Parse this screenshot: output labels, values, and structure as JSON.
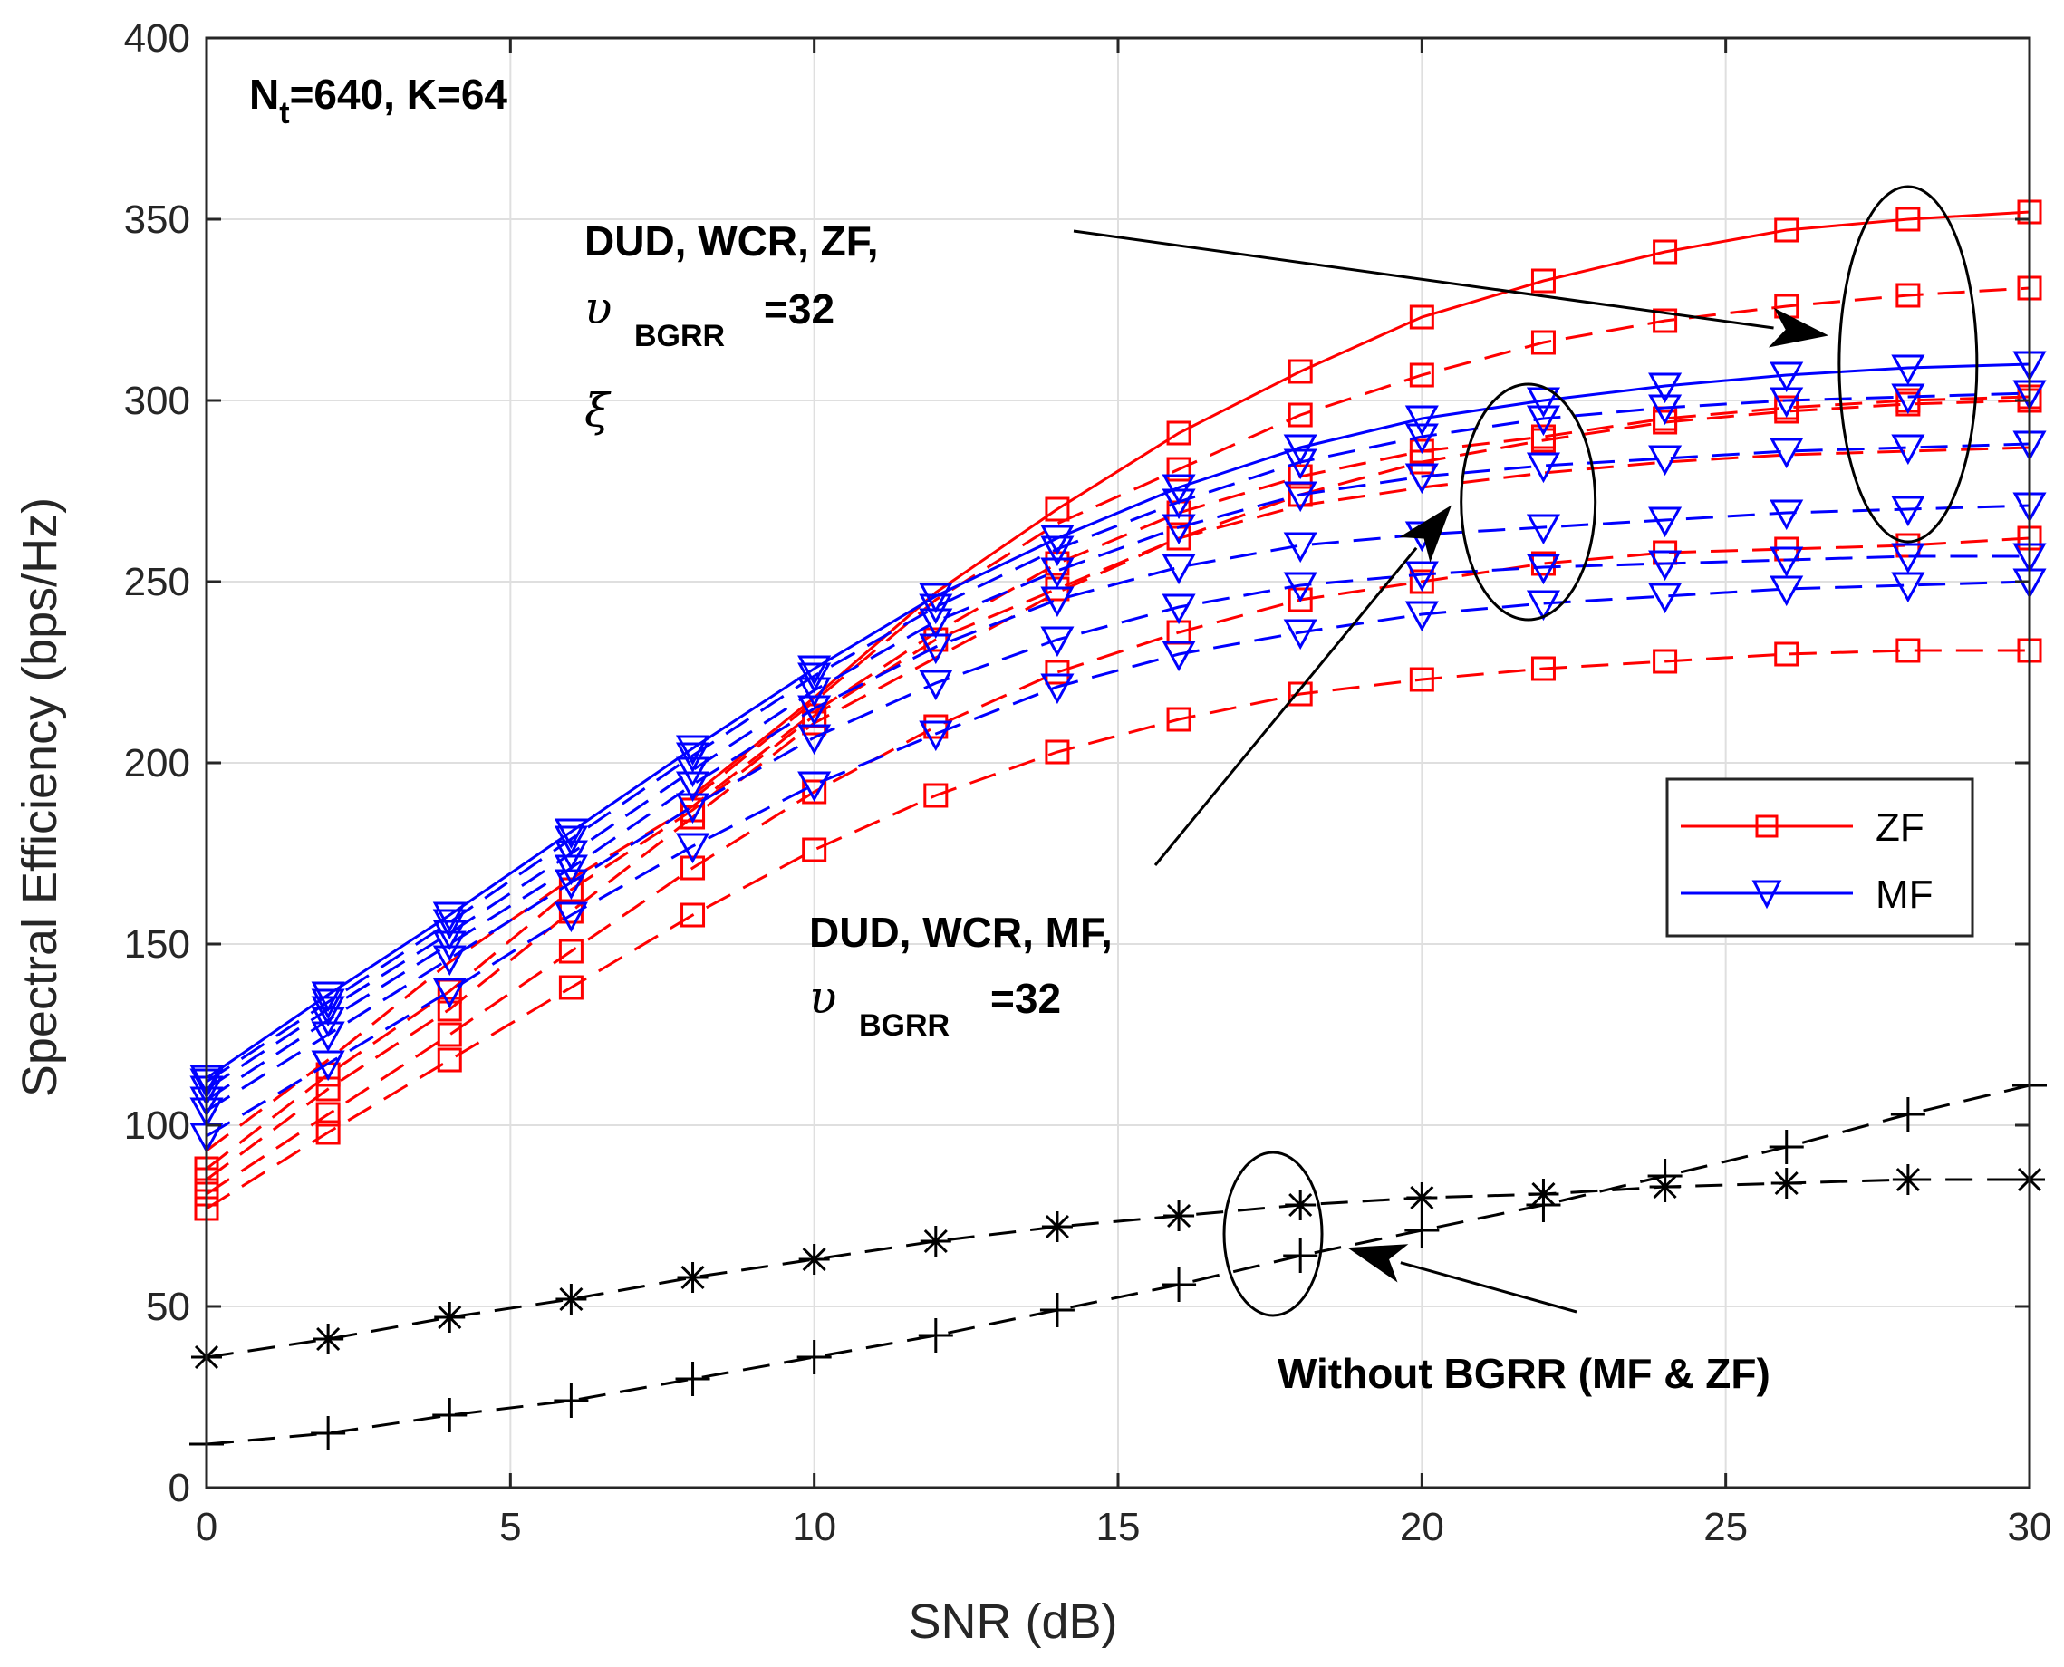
{
  "chart_data": {
    "type": "line",
    "xlabel": "SNR (dB)",
    "ylabel": "Spectral Efficiency (bps/Hz)",
    "xlim": [
      0,
      30
    ],
    "ylim": [
      0,
      400
    ],
    "xticks": [
      0,
      5,
      10,
      15,
      20,
      25,
      30
    ],
    "yticks": [
      0,
      50,
      100,
      150,
      200,
      250,
      300,
      350,
      400
    ],
    "grid": true,
    "legend": {
      "placement": "right",
      "entries": [
        {
          "label": "ZF",
          "color": "#ff0000",
          "marker": "square"
        },
        {
          "label": "MF",
          "color": "#0000ff",
          "marker": "triangle-down"
        }
      ]
    },
    "annotations": {
      "params_main": "N",
      "params_sub": "t",
      "params_rest": "=640, K=64",
      "zf_line1": "DUD, WCR, ZF,",
      "zf_sym": "υ",
      "zf_sub": "BGRR",
      "zf_val": "=32",
      "zf_xi": "ξ",
      "mf_line1": "DUD, WCR, MF,",
      "mf_sym": "υ",
      "mf_sub": "BGRR",
      "mf_val": "=32",
      "without": "Without BGRR (MF & ZF)"
    },
    "x": [
      0,
      2,
      4,
      6,
      8,
      10,
      12,
      14,
      16,
      18,
      20,
      22,
      24,
      26,
      28,
      30
    ],
    "series": [
      {
        "name": "ZF-1",
        "group": "ZF",
        "color": "#ff0000",
        "marker": "square",
        "dash": false,
        "values": [
          null,
          null,
          null,
          null,
          191,
          218,
          247,
          270,
          291,
          308,
          323,
          333,
          341,
          347,
          350,
          352
        ],
        "marker_x": [
          14,
          16,
          18,
          20,
          22,
          24,
          26,
          28,
          30
        ]
      },
      {
        "name": "ZF-2",
        "group": "ZF",
        "color": "#ff0000",
        "marker": "square",
        "dash": true,
        "values": [
          null,
          null,
          null,
          null,
          190,
          217,
          245,
          266,
          281,
          296,
          307,
          316,
          322,
          326,
          329,
          331
        ],
        "marker_x": [
          16,
          18,
          20,
          22,
          24,
          26,
          28,
          30
        ]
      },
      {
        "name": "ZF-3",
        "group": "ZF",
        "color": "#ff0000",
        "marker": "square",
        "dash": true,
        "values": [
          93,
          118,
          145,
          168,
          188,
          214,
          236,
          255,
          269,
          279,
          286,
          290,
          295,
          298,
          300,
          301
        ],
        "marker_x": [
          14,
          16,
          18,
          20,
          22,
          24,
          26,
          28,
          30
        ]
      },
      {
        "name": "ZF-4",
        "group": "ZF",
        "color": "#ff0000",
        "marker": "square",
        "dash": true,
        "values": [
          88,
          114,
          137,
          165,
          187,
          213,
          234,
          248,
          262,
          274,
          283,
          289,
          294,
          297,
          299,
          300
        ],
        "marker_x": [
          0,
          2,
          4,
          6,
          8,
          10,
          12,
          14,
          16,
          18,
          20,
          22,
          24,
          26,
          28,
          30
        ]
      },
      {
        "name": "ZF-5",
        "group": "ZF",
        "color": "#ff0000",
        "marker": "square",
        "dash": true,
        "values": [
          85,
          110,
          132,
          159,
          185,
          211,
          229,
          247,
          262,
          271,
          276,
          280,
          283,
          285,
          286,
          287
        ],
        "marker_x": [
          0,
          2,
          4,
          6,
          8,
          10
        ]
      },
      {
        "name": "ZF-6",
        "group": "ZF",
        "color": "#ff0000",
        "marker": "square",
        "dash": true,
        "values": [
          81,
          103,
          125,
          148,
          171,
          192,
          210,
          225,
          236,
          245,
          250,
          255,
          258,
          259,
          260,
          262
        ],
        "marker_x": [
          0,
          2,
          4,
          6,
          8,
          10,
          12,
          14,
          16,
          18,
          20,
          22,
          24,
          26,
          28,
          30
        ]
      },
      {
        "name": "ZF-7",
        "group": "ZF",
        "color": "#ff0000",
        "marker": "square",
        "dash": true,
        "values": [
          77,
          98,
          118,
          138,
          158,
          176,
          191,
          203,
          212,
          219,
          223,
          226,
          228,
          230,
          231,
          231
        ],
        "marker_x": [
          0,
          2,
          4,
          6,
          8,
          10,
          12,
          14,
          16,
          18,
          20,
          22,
          24,
          26,
          28,
          30
        ]
      },
      {
        "name": "MF-1",
        "group": "MF",
        "color": "#0000ff",
        "marker": "triangle",
        "dash": false,
        "values": [
          113,
          136,
          158,
          181,
          204,
          226,
          246,
          262,
          276,
          287,
          295,
          300,
          304,
          307,
          309,
          310
        ],
        "marker_x": [
          0,
          2,
          4,
          6,
          8,
          10,
          12,
          14,
          16,
          18,
          20,
          22,
          24,
          26,
          28,
          30
        ]
      },
      {
        "name": "MF-2",
        "group": "MF",
        "color": "#0000ff",
        "marker": "triangle",
        "dash": true,
        "values": [
          112,
          134,
          156,
          179,
          202,
          224,
          243,
          259,
          272,
          283,
          290,
          295,
          298,
          300,
          301,
          302
        ],
        "marker_x": [
          0,
          2,
          4,
          6,
          8,
          10,
          12,
          14,
          16,
          18,
          20,
          22,
          24,
          26,
          28,
          30
        ]
      },
      {
        "name": "MF-3",
        "group": "MF",
        "color": "#0000ff",
        "marker": "triangle",
        "dash": true,
        "values": [
          110,
          132,
          153,
          175,
          198,
          220,
          239,
          253,
          265,
          274,
          279,
          282,
          284,
          286,
          287,
          288
        ],
        "marker_x": [
          0,
          2,
          4,
          6,
          8,
          10,
          12,
          14,
          16,
          18,
          20,
          22,
          24,
          26,
          28,
          30
        ]
      },
      {
        "name": "MF-4",
        "group": "MF",
        "color": "#0000ff",
        "marker": "triangle",
        "dash": true,
        "values": [
          107,
          129,
          150,
          171,
          194,
          215,
          232,
          245,
          254,
          260,
          263,
          265,
          267,
          269,
          270,
          271
        ],
        "marker_x": [
          0,
          2,
          4,
          6,
          8,
          10,
          12,
          14,
          16,
          18,
          20,
          22,
          24,
          26,
          28,
          30
        ]
      },
      {
        "name": "MF-5",
        "group": "MF",
        "color": "#0000ff",
        "marker": "triangle",
        "dash": true,
        "values": [
          104,
          125,
          146,
          167,
          188,
          207,
          222,
          234,
          243,
          249,
          252,
          254,
          255,
          256,
          257,
          257
        ],
        "marker_x": [
          0,
          2,
          4,
          6,
          8,
          10,
          12,
          14,
          16,
          18,
          20,
          22,
          24,
          26,
          28,
          30
        ]
      },
      {
        "name": "MF-6",
        "group": "MF",
        "color": "#0000ff",
        "marker": "triangle",
        "dash": true,
        "values": [
          97,
          117,
          137,
          158,
          177,
          194,
          208,
          221,
          230,
          236,
          241,
          244,
          246,
          248,
          249,
          250
        ],
        "marker_x": [
          0,
          2,
          4,
          6,
          8,
          10,
          12,
          14,
          16,
          18,
          20,
          22,
          24,
          26,
          28,
          30
        ]
      },
      {
        "name": "Without BGRR (*)",
        "group": "Without",
        "color": "#000000",
        "marker": "asterisk",
        "dash": true,
        "values": [
          36,
          41,
          47,
          52,
          58,
          63,
          68,
          72,
          75,
          78,
          80,
          81,
          83,
          84,
          85,
          85
        ],
        "marker_x": [
          0,
          2,
          4,
          6,
          8,
          10,
          12,
          14,
          16,
          18,
          20,
          22,
          24,
          26,
          28,
          30
        ]
      },
      {
        "name": "Without BGRR (+)",
        "group": "Without",
        "color": "#000000",
        "marker": "plus",
        "dash": true,
        "values": [
          12,
          15,
          20,
          24,
          30,
          36,
          42,
          49,
          56,
          64,
          71,
          78,
          86,
          94,
          103,
          111
        ],
        "marker_x": [
          0,
          2,
          4,
          6,
          8,
          10,
          12,
          14,
          16,
          18,
          20,
          22,
          24,
          26,
          28,
          30
        ]
      }
    ]
  }
}
